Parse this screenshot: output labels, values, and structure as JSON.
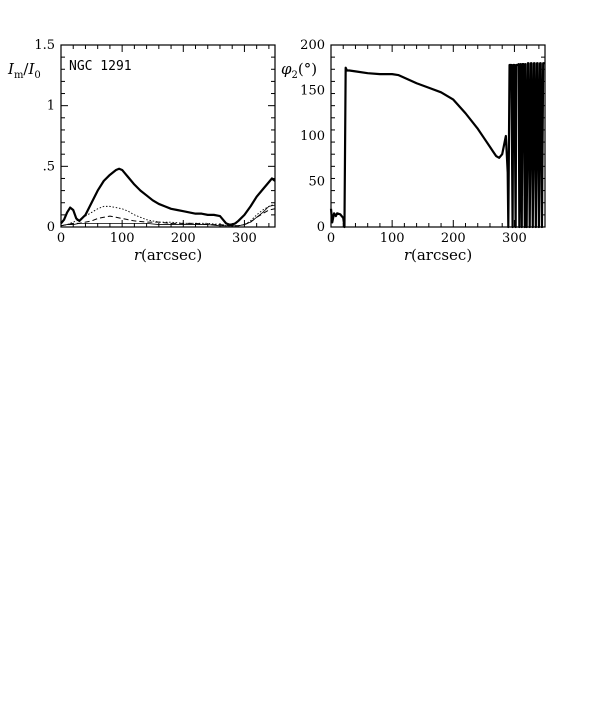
{
  "chart_data": [
    {
      "type": "line",
      "panel": "left",
      "ylabel_main": "I",
      "ylabel_sub1": "m",
      "ylabel_slash": "/",
      "ylabel_main2": "I",
      "ylabel_sub2": "0",
      "xlabel_var": "r",
      "xlabel_unit": "(arcsec)",
      "annotation": "NGC 1291",
      "xlim": [
        0,
        350
      ],
      "ylim": [
        0,
        1.5
      ],
      "xticks": [
        0,
        100,
        200,
        300
      ],
      "xtick_labels": [
        "0",
        "100",
        "200",
        "300"
      ],
      "yticks": [
        0,
        0.5,
        1,
        1.5
      ],
      "ytick_labels": [
        "0",
        ".5",
        "1",
        "1.5"
      ],
      "series": [
        {
          "style": "solid-thick",
          "x": [
            0,
            5,
            10,
            15,
            20,
            25,
            30,
            40,
            50,
            60,
            70,
            80,
            90,
            95,
            100,
            110,
            120,
            130,
            140,
            150,
            160,
            170,
            180,
            190,
            200,
            210,
            220,
            230,
            240,
            250,
            260,
            265,
            270,
            275,
            280,
            285,
            290,
            300,
            310,
            320,
            330,
            340,
            345,
            350
          ],
          "y": [
            0.03,
            0.06,
            0.12,
            0.16,
            0.14,
            0.07,
            0.05,
            0.1,
            0.2,
            0.3,
            0.38,
            0.43,
            0.47,
            0.48,
            0.47,
            0.41,
            0.35,
            0.3,
            0.26,
            0.22,
            0.19,
            0.17,
            0.15,
            0.14,
            0.13,
            0.12,
            0.11,
            0.11,
            0.1,
            0.1,
            0.09,
            0.06,
            0.03,
            0.02,
            0.02,
            0.03,
            0.05,
            0.1,
            0.17,
            0.25,
            0.31,
            0.37,
            0.4,
            0.38
          ]
        },
        {
          "style": "dotted",
          "x": [
            0,
            10,
            20,
            30,
            40,
            50,
            60,
            70,
            80,
            90,
            100,
            110,
            120,
            130,
            140,
            150,
            160,
            180,
            200,
            220,
            240,
            260,
            270,
            280,
            290,
            300,
            310,
            320,
            330,
            340,
            350
          ],
          "y": [
            0.01,
            0.02,
            0.04,
            0.06,
            0.09,
            0.12,
            0.15,
            0.17,
            0.17,
            0.16,
            0.15,
            0.13,
            0.1,
            0.08,
            0.06,
            0.05,
            0.04,
            0.04,
            0.03,
            0.03,
            0.03,
            0.02,
            0.01,
            0.01,
            0.01,
            0.02,
            0.05,
            0.1,
            0.14,
            0.17,
            0.19
          ]
        },
        {
          "style": "dashed",
          "x": [
            0,
            10,
            20,
            30,
            40,
            50,
            60,
            70,
            80,
            90,
            100,
            110,
            120,
            140,
            160,
            180,
            200,
            220,
            240,
            260,
            280,
            290,
            300,
            310,
            320,
            330,
            340,
            350
          ],
          "y": [
            0.01,
            0.02,
            0.03,
            0.03,
            0.04,
            0.05,
            0.07,
            0.08,
            0.09,
            0.08,
            0.07,
            0.06,
            0.05,
            0.04,
            0.04,
            0.03,
            0.03,
            0.03,
            0.02,
            0.02,
            0.01,
            0.01,
            0.02,
            0.04,
            0.08,
            0.11,
            0.14,
            0.15
          ]
        },
        {
          "style": "solid-thin",
          "x": [
            0,
            10,
            20,
            30,
            40,
            60,
            80,
            100,
            120,
            140,
            160,
            180,
            200,
            220,
            240,
            260,
            280,
            290,
            300,
            310,
            320,
            330,
            340,
            350
          ],
          "y": [
            0.01,
            0.02,
            0.02,
            0.03,
            0.03,
            0.03,
            0.03,
            0.03,
            0.03,
            0.03,
            0.02,
            0.02,
            0.02,
            0.02,
            0.02,
            0.01,
            0.01,
            0.01,
            0.02,
            0.04,
            0.08,
            0.12,
            0.17,
            0.18
          ]
        }
      ]
    },
    {
      "type": "line",
      "panel": "right",
      "ylabel_main": "φ",
      "ylabel_sub": "2",
      "ylabel_unit": "(°)",
      "xlabel_var": "r",
      "xlabel_unit": "(arcsec)",
      "xlim": [
        0,
        350
      ],
      "ylim": [
        0,
        200
      ],
      "xticks": [
        0,
        100,
        200,
        300
      ],
      "xtick_labels": [
        "0",
        "100",
        "200",
        "300"
      ],
      "yticks": [
        0,
        50,
        100,
        150,
        200
      ],
      "ytick_labels": [
        "0",
        "50",
        "100",
        "150",
        "200"
      ],
      "series": [
        {
          "style": "solid-thick",
          "x": [
            0,
            2,
            5,
            8,
            10,
            15,
            20,
            22,
            24,
            26,
            30,
            40,
            60,
            80,
            100,
            110,
            120,
            140,
            160,
            180,
            200,
            220,
            240,
            250,
            260,
            265,
            270,
            275,
            280,
            283,
            286,
            289,
            290,
            292,
            293,
            295,
            297,
            298,
            300,
            302,
            303,
            305,
            307,
            308,
            310,
            312,
            313,
            315,
            317,
            318,
            320,
            322,
            323,
            325,
            327,
            328,
            330,
            332,
            333,
            335,
            337,
            338,
            340,
            342,
            343,
            345,
            347,
            348,
            350
          ],
          "y": [
            20,
            5,
            15,
            12,
            15,
            14,
            10,
            0,
            175,
            172,
            172,
            171,
            169,
            168,
            168,
            167,
            164,
            158,
            153,
            148,
            140,
            125,
            108,
            98,
            88,
            83,
            78,
            76,
            80,
            90,
            100,
            60,
            0,
            178,
            178,
            178,
            0,
            178,
            178,
            0,
            178,
            178,
            179,
            0,
            179,
            0,
            179,
            179,
            0,
            179,
            0,
            180,
            180,
            0,
            180,
            180,
            0,
            180,
            180,
            0,
            180,
            180,
            0,
            180,
            180,
            0,
            180,
            180,
            180
          ]
        }
      ]
    }
  ]
}
